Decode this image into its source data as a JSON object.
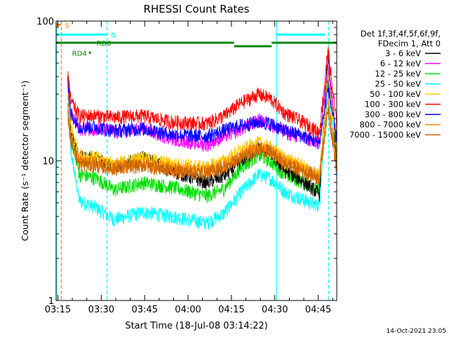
{
  "chart_data": {
    "type": "line",
    "title": "RHESSI Count Rates",
    "ylabel": "Count Rate (s⁻¹ detector segment⁻¹)",
    "xlabel": "Start Time (18-Jul-08 03:14:22)",
    "yscale": "log",
    "ylim": [
      1,
      100
    ],
    "y_ticks": [
      {
        "value": 1,
        "label": "1"
      },
      {
        "value": 10,
        "label": "10"
      },
      {
        "value": 100,
        "label": "100"
      }
    ],
    "x_range_minutes": [
      0,
      97
    ],
    "x_ticks": [
      {
        "t": 0.6,
        "label": "03:15"
      },
      {
        "t": 15.6,
        "label": "03:30"
      },
      {
        "t": 30.6,
        "label": "03:45"
      },
      {
        "t": 45.6,
        "label": "04:00"
      },
      {
        "t": 60.6,
        "label": "04:15"
      },
      {
        "t": 75.6,
        "label": "04:30"
      },
      {
        "t": 90.6,
        "label": "04:45"
      }
    ],
    "legend_header": [
      "Det 1f,3f,4f,5f,6f,9f,",
      "FDecim 1, Att 0"
    ],
    "series": [
      {
        "name": "3 - 6 keV",
        "color": "#000000",
        "t": [
          4,
          5,
          8,
          14,
          20,
          30,
          40,
          52,
          58,
          64,
          70,
          74,
          79,
          84,
          88,
          91,
          94,
          97
        ],
        "v": [
          35,
          17,
          10.5,
          10.5,
          9,
          10.5,
          8.5,
          7,
          7.8,
          10,
          12.5,
          11.5,
          8.5,
          7.5,
          6.5,
          5.8,
          60,
          10
        ]
      },
      {
        "name": "6 - 12 keV",
        "color": "#ff00ff",
        "t": [
          4,
          5,
          8,
          14,
          20,
          30,
          40,
          52,
          58,
          64,
          70,
          74,
          79,
          84,
          88,
          91,
          94,
          97
        ],
        "v": [
          37,
          22,
          17,
          17,
          16,
          17,
          14.5,
          13,
          15,
          17,
          19.5,
          18.5,
          16,
          15,
          14,
          13.5,
          50,
          14
        ]
      },
      {
        "name": "12 - 25 keV",
        "color": "#00dd00",
        "t": [
          4,
          5,
          8,
          14,
          20,
          30,
          40,
          52,
          58,
          64,
          70,
          74,
          79,
          84,
          88,
          91,
          94,
          97
        ],
        "v": [
          40,
          16,
          8,
          7.5,
          6.2,
          7,
          6.5,
          5.6,
          6.3,
          9,
          11,
          10,
          8,
          7.2,
          6.6,
          6.2,
          46,
          10
        ]
      },
      {
        "name": "25 - 50 keV",
        "color": "#00ffff",
        "t": [
          4,
          5,
          8,
          14,
          20,
          30,
          40,
          52,
          58,
          64,
          70,
          74,
          79,
          84,
          88,
          91,
          94,
          97
        ],
        "v": [
          25,
          12,
          5.2,
          4.6,
          3.8,
          4.3,
          4,
          3.6,
          4.2,
          6,
          8,
          7.5,
          6,
          5.4,
          5,
          4.8,
          38,
          8
        ]
      },
      {
        "name": "50 - 100 keV",
        "color": "#ffcc00",
        "t": [
          4,
          5,
          8,
          14,
          20,
          30,
          40,
          52,
          58,
          64,
          70,
          74,
          79,
          84,
          88,
          91,
          94,
          97
        ],
        "v": [
          34,
          18,
          11,
          10.5,
          9.5,
          10.5,
          9.5,
          9,
          10,
          12,
          13.5,
          12.5,
          10.5,
          9.5,
          8.5,
          7.8,
          42,
          12
        ]
      },
      {
        "name": "100 - 300 keV",
        "color": "#ff0000",
        "t": [
          4,
          5,
          8,
          14,
          20,
          30,
          40,
          52,
          58,
          64,
          70,
          74,
          79,
          84,
          88,
          91,
          94,
          97
        ],
        "v": [
          45,
          27,
          21,
          21,
          20.5,
          21,
          19,
          18.5,
          21,
          26,
          30,
          28,
          22,
          19.5,
          17.5,
          16,
          62,
          18
        ]
      },
      {
        "name": "300 - 800 keV",
        "color": "#0000ff",
        "t": [
          4,
          5,
          8,
          14,
          20,
          30,
          40,
          52,
          58,
          64,
          70,
          74,
          79,
          84,
          88,
          91,
          94,
          97
        ],
        "v": [
          40,
          22,
          17.5,
          17.5,
          16.5,
          17,
          15.5,
          15,
          16.5,
          18,
          19,
          18.5,
          16.5,
          15.5,
          14.2,
          13.5,
          34,
          14
        ]
      },
      {
        "name": "800 - 7000 keV",
        "color": "#ff8800",
        "t": [
          4,
          5,
          8,
          14,
          20,
          30,
          40,
          52,
          58,
          64,
          70,
          74,
          79,
          84,
          88,
          91,
          94,
          97
        ],
        "v": [
          26,
          15,
          10,
          9.8,
          9,
          9.6,
          8.8,
          8.5,
          9.3,
          11,
          12.8,
          12,
          10,
          9,
          8.2,
          7.8,
          28,
          9
        ]
      },
      {
        "name": "7000 - 15000 keV",
        "color": "#cc6600",
        "t": [
          4,
          5,
          8,
          14,
          20,
          30,
          40,
          52,
          58,
          64,
          70,
          74,
          79,
          84,
          88,
          91,
          94,
          97
        ],
        "v": [
          22,
          14,
          9.5,
          9.2,
          8.8,
          9.3,
          8.5,
          8.2,
          9,
          10.5,
          12,
          11.5,
          9.5,
          8.7,
          8,
          7.5,
          24,
          8.5
        ]
      }
    ],
    "status_bars": [
      {
        "label": "S",
        "color": "#ff8800",
        "y_value": 94,
        "t_start": 0,
        "t_end": 1.6
      },
      {
        "label": "N",
        "color": "#00ffff",
        "y_value": 80,
        "t_start": 0,
        "t_end": 17.5
      },
      {
        "label": "",
        "color": "#00ffff",
        "y_value": 80,
        "t_start": 76,
        "t_end": 93
      },
      {
        "label": "",
        "color": "#008800",
        "y_value": 70,
        "t_start": 0,
        "t_end": 61.5
      },
      {
        "label": "",
        "color": "#008800",
        "y_value": 66,
        "t_start": 61.5,
        "t_end": 74.5
      },
      {
        "label": "",
        "color": "#008800",
        "y_value": 70,
        "t_start": 74.5,
        "t_end": 97
      }
    ],
    "annotations": [
      {
        "text": "RD0",
        "t": 14,
        "y_value": 70,
        "color": "#008800"
      },
      {
        "text": "RD4",
        "t": 5.5,
        "y_value": 59,
        "color": "#008800"
      }
    ],
    "vlines": [
      {
        "t": 0.1,
        "color": "#00ffff",
        "dash": false
      },
      {
        "t": 1.8,
        "color": "#ff8800",
        "dash": true
      },
      {
        "t": 17.6,
        "color": "#00ffff",
        "dash": true
      },
      {
        "t": 76.3,
        "color": "#00ffff",
        "dash": false
      },
      {
        "t": 94.2,
        "color": "#00ffff",
        "dash": true
      }
    ],
    "footer_timestamp": "14-Oct-2021 23:05"
  }
}
